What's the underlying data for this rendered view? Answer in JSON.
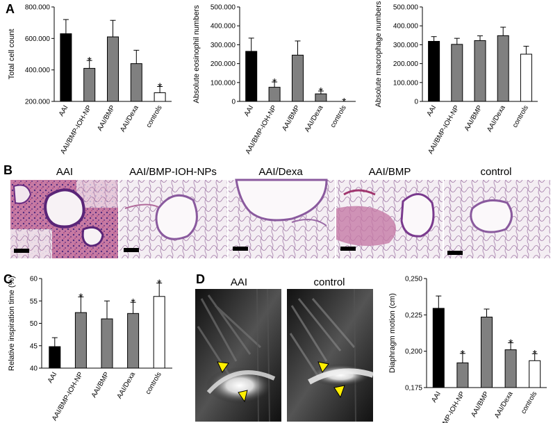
{
  "panels": {
    "A": "A",
    "B": "B",
    "C": "C",
    "D": "D"
  },
  "colors": {
    "black_bar": "#000000",
    "gray_bar": "#808080",
    "white_bar": "#ffffff",
    "arrowhead": "#ffee00"
  },
  "chart_data": [
    {
      "id": "A1",
      "type": "bar",
      "categories": [
        "AAI",
        "AAI/BMP-IOH-NP",
        "AAI/BMP",
        "AAI/Dexa",
        "controls"
      ],
      "values": [
        630000,
        410000,
        610000,
        440000,
        255000
      ],
      "errors": [
        90000,
        50000,
        105000,
        85000,
        40000
      ],
      "significant": [
        false,
        true,
        false,
        false,
        true
      ],
      "bar_colors": [
        "black",
        "gray",
        "gray",
        "gray",
        "white"
      ],
      "ylabel": "Total cell count",
      "ylim": [
        200000,
        800000
      ],
      "yticks": [
        200000,
        400000,
        600000,
        800000
      ],
      "ytick_labels": [
        "200.000",
        "400.000",
        "600.000",
        "800.000"
      ]
    },
    {
      "id": "A2",
      "type": "bar",
      "categories": [
        "AAI",
        "AAI/BMP-IOH-NP",
        "AAI/BMP",
        "AAI/Dexa",
        "controls"
      ],
      "values": [
        265000,
        75000,
        245000,
        40000,
        0
      ],
      "errors": [
        70000,
        28000,
        75000,
        15000,
        0
      ],
      "significant": [
        false,
        true,
        false,
        true,
        true
      ],
      "bar_colors": [
        "black",
        "gray",
        "gray",
        "gray",
        "white"
      ],
      "ylabel": "Absolute eosinophil numbers",
      "ylim": [
        0,
        500000
      ],
      "yticks": [
        0,
        100000,
        200000,
        300000,
        400000,
        500000
      ],
      "ytick_labels": [
        "0",
        "100.000",
        "200.000",
        "300.000",
        "400.000",
        "500.000"
      ]
    },
    {
      "id": "A3",
      "type": "bar",
      "categories": [
        "AAI",
        "AAI/BMP-IOH-NP",
        "AAI/BMP",
        "AAI/Dexa",
        "controls"
      ],
      "values": [
        318000,
        302000,
        322000,
        348000,
        250000
      ],
      "errors": [
        25000,
        32000,
        25000,
        45000,
        42000
      ],
      "significant": [
        false,
        false,
        false,
        false,
        false
      ],
      "bar_colors": [
        "black",
        "gray",
        "gray",
        "gray",
        "white"
      ],
      "ylabel": "Absolute macrophage numbers",
      "ylim": [
        0,
        500000
      ],
      "yticks": [
        0,
        100000,
        200000,
        300000,
        400000,
        500000
      ],
      "ytick_labels": [
        "0",
        "100.000",
        "200.000",
        "300.000",
        "400.000",
        "500.000"
      ]
    },
    {
      "id": "C",
      "type": "bar",
      "categories": [
        "AAI",
        "AAI/BMP-IOH-NP",
        "AAI/BMP",
        "AAI/Dexa",
        "controls"
      ],
      "values": [
        44.8,
        52.4,
        51.0,
        52.2,
        56.0
      ],
      "errors": [
        2.0,
        3.5,
        4.0,
        2.5,
        3.0
      ],
      "significant": [
        false,
        true,
        false,
        true,
        true
      ],
      "bar_colors": [
        "black",
        "gray",
        "gray",
        "gray",
        "white"
      ],
      "ylabel": "Relative inspiration time (%)",
      "ylim": [
        40,
        60
      ],
      "yticks": [
        40,
        45,
        50,
        55,
        60
      ],
      "ytick_labels": [
        "40",
        "45",
        "50",
        "55",
        "60"
      ]
    },
    {
      "id": "D",
      "type": "bar",
      "categories": [
        "AAI",
        "AAI/BMP-IOH-NP",
        "AAI/BMP",
        "AAI/Dexa",
        "controls"
      ],
      "values": [
        0.2295,
        0.192,
        0.2235,
        0.201,
        0.1935
      ],
      "errors": [
        0.0085,
        0.0065,
        0.0055,
        0.0048,
        0.0048
      ],
      "significant": [
        false,
        true,
        false,
        true,
        true
      ],
      "bar_colors": [
        "black",
        "gray",
        "gray",
        "gray",
        "white"
      ],
      "ylabel": "Diaphragm motion (cm)",
      "ylim": [
        0.175,
        0.25
      ],
      "yticks": [
        0.175,
        0.2,
        0.225,
        0.25
      ],
      "ytick_labels": [
        "0,175",
        "0,200",
        "0,225",
        "0,250"
      ]
    }
  ],
  "histology": {
    "labels": [
      "AAI",
      "AAI/BMP-IOH-NPs",
      "AAI/Dexa",
      "AAI/BMP",
      "control"
    ],
    "icons": [
      "dense-inflamed-lung-tissue",
      "airway-tissue",
      "airway-tissue",
      "inflamed-airway-tissue",
      "airway-tissue"
    ]
  },
  "mri": {
    "labels": [
      "AAI",
      "control"
    ],
    "icons": [
      "mri-thorax-image",
      "mri-thorax-image"
    ]
  },
  "star_symbol": "*"
}
